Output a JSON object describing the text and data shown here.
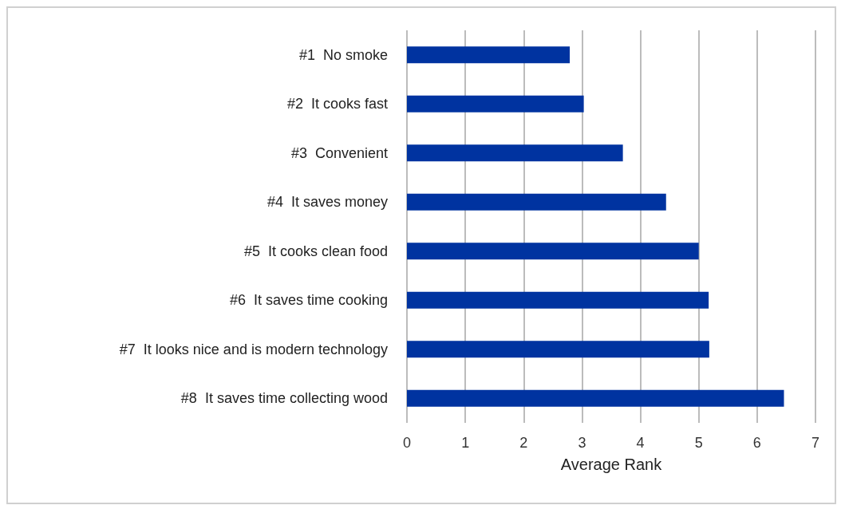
{
  "chart_data": {
    "type": "bar",
    "orientation": "horizontal",
    "xlabel": "Average Rank",
    "categories": [
      "#1  No smoke",
      "#2  It cooks fast",
      "#3  Convenient",
      "#4  It saves money",
      "#5  It cooks clean food",
      "#6  It saves time cooking",
      "#7  It looks nice and is modern technology",
      "#8  It saves time collecting wood"
    ],
    "values": [
      2.79,
      3.03,
      3.7,
      4.44,
      5.0,
      5.17,
      5.18,
      6.46
    ],
    "color": "#0033a0",
    "xlim": [
      0,
      7
    ],
    "xticks": [
      0,
      1,
      2,
      3,
      4,
      5,
      6,
      7
    ],
    "grid": "x"
  }
}
